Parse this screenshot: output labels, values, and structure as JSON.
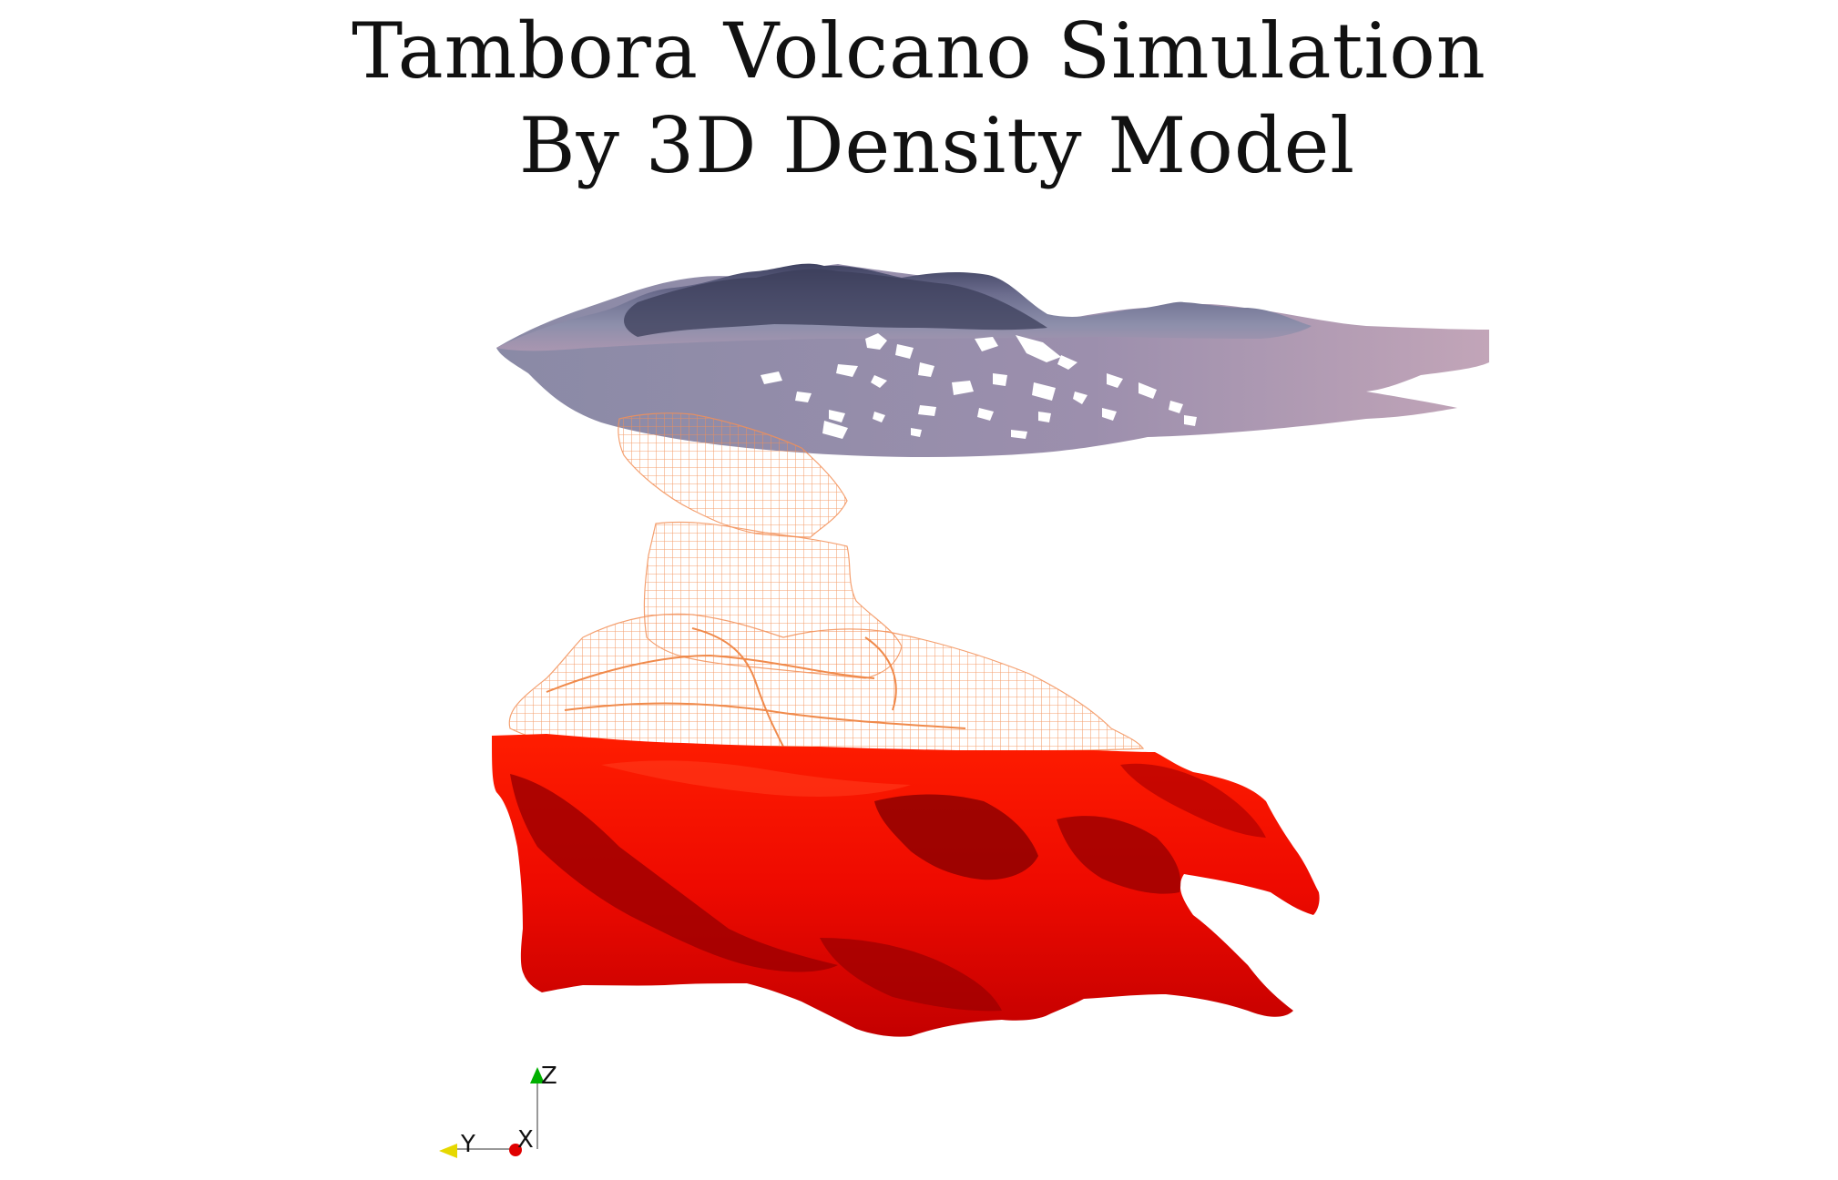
{
  "title": {
    "line1": "Tambora Volcano Simulation",
    "line2": "By 3D Density Model"
  },
  "scene": {
    "layers": {
      "terrain": {
        "icon": "terrain-surface-mesh",
        "colors": [
          "#5b5e7e",
          "#8d8eab",
          "#b6a0b2",
          "#ffffff"
        ]
      },
      "plume": {
        "icon": "wireframe-density-isosurface",
        "color": "#f08a4b"
      },
      "magma_body": {
        "icon": "solid-density-isosurface",
        "colors": [
          "#ff1a00",
          "#c20000",
          "#7a0000"
        ]
      }
    }
  },
  "axes": {
    "z_label": "Z",
    "y_label": "Y",
    "x_label": "X",
    "z_color": "#00b000",
    "y_color": "#e6d800",
    "x_color": "#e00000"
  }
}
